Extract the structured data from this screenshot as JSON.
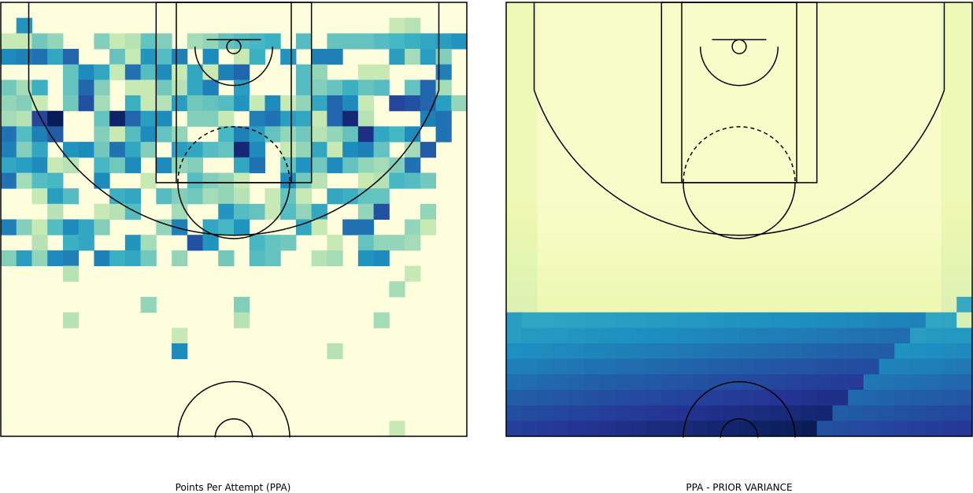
{
  "chart_data": [
    {
      "type": "heatmap",
      "title": "Points Per Attempt (PPA)",
      "colormap": "YlGnBu",
      "background_color": "#ffffdd",
      "grid": false,
      "nrows": 28,
      "ncols": 30,
      "levels": [
        "..............................",
        ".M.......................AB...",
        "AAFD..EABGE.CDGHIJ.H.GGGHIJKLM",
        "NOPKQ..GAMHO.N.AJ.M.OO...LCLE.",
        "....GNKAPHNAKAOQ...HD..AA...O.",
        "FCJ.GQE.AAFBKO.L...HEGJGH.GQC.",
        "DEA.FSC.JABLFGHMANADKQNA.TSQLD",
        "CBTZ..GYQLN.EEA.OPLKAQXB...OP.",
        "PHOR..EAHNGD..IOLGDFBDGWKIN.P.",
        "OEK.MNFPKE.LKHGXN.ADKANOG.CR..",
        "KLNAB.IFN.NDE..KP.GMFNGDCEP...",
        "PCHI..N..A..HEDA..NFB..ABIHF..",
        "..ALH..JK.HEFCDB.AGA.KJGG.....",
        "...B..ABH..C..MHGAHDK..DS..D..",
        "OEAHNKE...DO.KIM...KA.PP..DA..",
        "..B.JK..MC..SM..IGF..A.GDDC...",
        "ELDNO.OJKF.D..F.HG..BC.MN.....",
        "....B.....................A...",
        ".........................C....",
        ".........D.....E..............",
        "....B..........B........C.....",
        "...........A..................",
        "...........N.........B........",
        "..............................",
        "..............................",
        "..............................",
        "..............................",
        ".........................A...."
      ]
    },
    {
      "type": "heatmap",
      "title": "PPA - PRIOR VARIANCE",
      "colormap": "YlGnBu",
      "grid": false,
      "nrows": 28,
      "ncols": 30,
      "levels": [
        "..............................",
        "..............................",
        "..............................",
        "..............................",
        "..............................",
        "..............................",
        "..............................",
        "..............................",
        "..............................",
        "..............................",
        "..............................",
        "..............................",
        "..............................",
        "..............................",
        "..............................",
        "..............................",
        "..............................",
        "..............................",
        "..............................",
        ".............................G",
        "GABCDEFGHIJKLMNOPQRSTUVWXYZAB.",
        "ABCDEFGHIJKLMNOPQRSTUVWXYZABCD",
        "BCDEFGHIJKLMNOPQRSTUVWXYZABCDE",
        "CDEFGHIJKLMNOPQRSTUVWXYZABCDEF",
        "DEFGHIJKLMNOPQRSTUVWXYZABCDEFG",
        "EFGHIJKLMNOPQRSTUVWXYZABCDEFGH",
        "FGHIJKLMNOPQRSTUVWXYZABCDEFGHI",
        "GHIJKLMNOPQRSTUVWXYZABCDEFGHIJ"
      ]
    }
  ]
}
